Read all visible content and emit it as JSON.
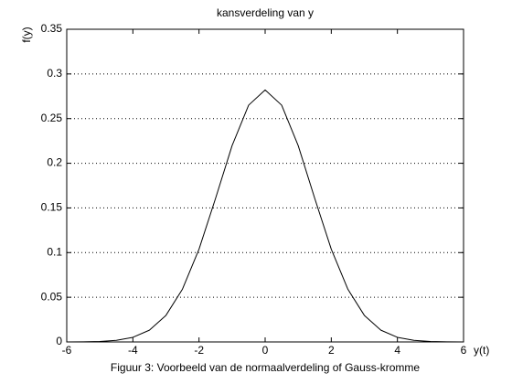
{
  "chart_data": {
    "type": "line",
    "title": "kansverdeling van y",
    "ylabel": "f(y)",
    "xlabel": "y(t)",
    "caption": "Figuur 3: Voorbeeld van de normaalverdeling of Gauss-kromme",
    "x": [
      -6,
      -5.5,
      -5,
      -4.5,
      -4,
      -3.5,
      -3,
      -2.5,
      -2,
      -1.5,
      -1,
      -0.5,
      0,
      0.5,
      1,
      1.5,
      2,
      2.5,
      3,
      3.5,
      4,
      4.5,
      5,
      5.5,
      6
    ],
    "values": [
      3e-05,
      0.00015,
      0.00054,
      0.00179,
      0.00517,
      0.01319,
      0.02974,
      0.05913,
      0.1038,
      0.1607,
      0.2197,
      0.265,
      0.2821,
      0.265,
      0.2197,
      0.1607,
      0.1038,
      0.05913,
      0.02974,
      0.01319,
      0.00517,
      0.00179,
      0.00054,
      0.00015,
      3e-05
    ],
    "color": "#000000",
    "xlim": [
      -6,
      6
    ],
    "xticks": [
      -6,
      -4,
      -2,
      0,
      2,
      4,
      6
    ],
    "ylim": [
      0,
      0.35
    ],
    "yticks": [
      0,
      0.05,
      0.1,
      0.15,
      0.2,
      0.25,
      0.3,
      0.35
    ],
    "grid": "y"
  }
}
